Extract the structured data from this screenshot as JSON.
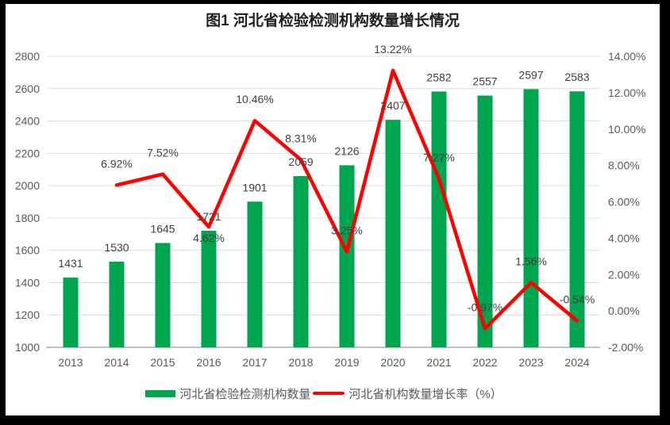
{
  "title": "图1  河北省检验检测机构数量增长情况",
  "colors": {
    "background": "#000000",
    "card": "#FFFFFF",
    "bar": "#00A550",
    "line": "#FF0000",
    "grid": "#DCDCDC",
    "axis": "#BFBFBF",
    "tick_text": "#595959",
    "data_label_text": "#404040",
    "title_text": "#1F1F1F",
    "legend_text": "#595959"
  },
  "chart_data": {
    "type": "combo bar+line, dual axis",
    "categories": [
      "2013",
      "2014",
      "2015",
      "2016",
      "2017",
      "2018",
      "2019",
      "2020",
      "2021",
      "2022",
      "2023",
      "2024"
    ],
    "series": [
      {
        "name": "河北省检验检测机构数量",
        "type": "bar",
        "axis": "left",
        "color": "#00A550",
        "values": [
          1431,
          1530,
          1645,
          1721,
          1901,
          2059,
          2126,
          2407,
          2582,
          2557,
          2597,
          2583
        ],
        "value_labels": [
          "1431",
          "1530",
          "1645",
          "1721",
          "1901",
          "2059",
          "2126",
          "2407",
          "2582",
          "2557",
          "2597",
          "2583"
        ]
      },
      {
        "name": "河北省机构数量增长率（%）",
        "type": "line",
        "axis": "right",
        "color": "#FF0000",
        "values": [
          null,
          6.92,
          7.52,
          4.62,
          10.46,
          8.31,
          3.25,
          13.22,
          7.27,
          -0.97,
          1.56,
          -0.54
        ],
        "point_labels": [
          "",
          "6.92%",
          "7.52%",
          "4.62%",
          "10.46%",
          "8.31%",
          "3.25%",
          "13.22%",
          "7.27%",
          "-0.97%",
          "1.56%",
          "-0.54%"
        ],
        "label_below_indices": [
          3
        ]
      }
    ],
    "left_axis": {
      "min": 1000,
      "max": 2800,
      "step": 200,
      "tick_labels": [
        "1000",
        "1200",
        "1400",
        "1600",
        "1800",
        "2000",
        "2200",
        "2400",
        "2600",
        "2800"
      ]
    },
    "right_axis": {
      "min": -2,
      "max": 14,
      "step": 2,
      "tick_labels": [
        "-2.00%",
        "0.00%",
        "2.00%",
        "4.00%",
        "6.00%",
        "8.00%",
        "10.00%",
        "12.00%",
        "14.00%"
      ]
    },
    "grid": {
      "horizontal": true,
      "vertical": false
    },
    "legend": {
      "position": "bottom-center",
      "items": [
        {
          "label": "河北省检验检测机构数量",
          "swatch": "bar",
          "color": "#00A550"
        },
        {
          "label": "河北省机构数量增长率（%）",
          "swatch": "line",
          "color": "#FF0000"
        }
      ]
    }
  }
}
